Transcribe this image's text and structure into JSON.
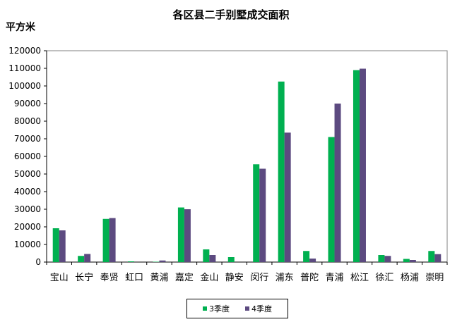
{
  "chart_data": {
    "type": "bar",
    "title": "各区县二手别墅成交面积",
    "ylabel": "平方米",
    "xlabel": "",
    "categories": [
      "宝山",
      "长宁",
      "奉贤",
      "虹口",
      "黄浦",
      "嘉定",
      "金山",
      "静安",
      "闵行",
      "浦东",
      "普陀",
      "青浦",
      "松江",
      "徐汇",
      "杨浦",
      "崇明"
    ],
    "ylim": [
      0,
      120000
    ],
    "yticks": [
      "0",
      "10000",
      "20000",
      "30000",
      "40000",
      "50000",
      "60000",
      "70000",
      "80000",
      "90000",
      "100000",
      "110000",
      "120000"
    ],
    "grid": false,
    "legend": "bottom",
    "series": [
      {
        "name": "3季度",
        "color": "#00b050",
        "values": [
          19200,
          3500,
          24500,
          400,
          200,
          31000,
          7200,
          2800,
          55500,
          102500,
          6300,
          71000,
          109000,
          4000,
          1800,
          6300
        ]
      },
      {
        "name": "4季度",
        "color": "#5c4a80",
        "values": [
          18000,
          4600,
          25000,
          0,
          900,
          30000,
          4000,
          0,
          53000,
          73500,
          2000,
          90000,
          109800,
          3500,
          1200,
          4500
        ]
      }
    ]
  }
}
